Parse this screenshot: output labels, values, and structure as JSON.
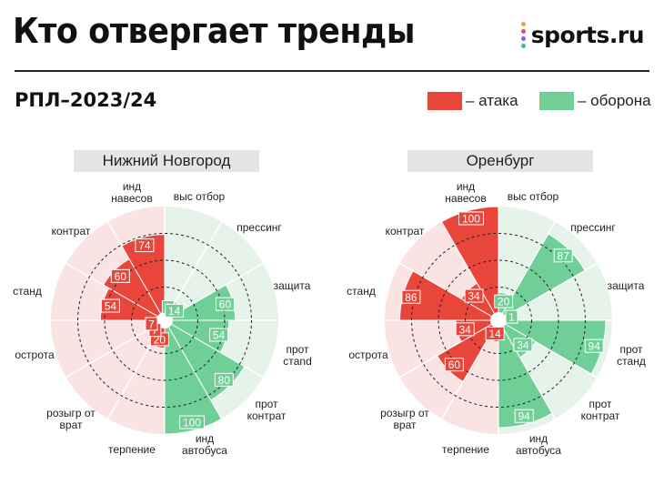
{
  "header": {
    "title": "Кто отвергает тренды",
    "logo_text": "sports.ru",
    "subtitle": "РПЛ–2023/24"
  },
  "legend": {
    "attack_label": "– атака",
    "defense_label": "– оборона"
  },
  "colors": {
    "attack": "#e8463a",
    "defense": "#6fcf97",
    "attack_bg": "#f9e4e3",
    "defense_bg": "#e6f3ea"
  },
  "chart_data": [
    {
      "type": "polar-bar",
      "team": "Нижний Новгород",
      "scale_max": 100,
      "categories": [
        {
          "label": "выс отбор",
          "value": 1,
          "group": "defense"
        },
        {
          "label": "прессинг",
          "value": 14,
          "group": "defense"
        },
        {
          "label": "защита",
          "value": 60,
          "group": "defense"
        },
        {
          "label": "прот стand",
          "value": 54,
          "group": "defense"
        },
        {
          "label": "прот контрат",
          "value": 80,
          "group": "defense"
        },
        {
          "label": "инд автобуса",
          "value": 100,
          "group": "defense"
        },
        {
          "label": "терпение",
          "value": 20,
          "group": "attack"
        },
        {
          "label": "розыгр от врат",
          "value": 7,
          "group": "attack"
        },
        {
          "label": "острота",
          "value": 7,
          "group": "attack"
        },
        {
          "label": "станд",
          "value": 54,
          "group": "attack"
        },
        {
          "label": "контрат",
          "value": 60,
          "group": "attack"
        },
        {
          "label": "инд навесов",
          "value": 74,
          "group": "attack"
        }
      ]
    },
    {
      "type": "polar-bar",
      "team": "Оренбург",
      "scale_max": 100,
      "categories": [
        {
          "label": "выс отбор",
          "value": 20,
          "group": "defense"
        },
        {
          "label": "прессинг",
          "value": 87,
          "group": "defense"
        },
        {
          "label": "защита",
          "value": 1,
          "group": "defense"
        },
        {
          "label": "прот станд",
          "value": 94,
          "group": "defense"
        },
        {
          "label": "прот контрат",
          "value": 34,
          "group": "defense"
        },
        {
          "label": "инд автобуса",
          "value": 94,
          "group": "defense"
        },
        {
          "label": "терпение",
          "value": 14,
          "group": "attack"
        },
        {
          "label": "розыгр от врат",
          "value": 60,
          "group": "attack"
        },
        {
          "label": "острота",
          "value": 34,
          "group": "attack"
        },
        {
          "label": "станд",
          "value": 86,
          "group": "attack"
        },
        {
          "label": "контрат",
          "value": 34,
          "group": "attack"
        },
        {
          "label": "инд навесов",
          "value": 100,
          "group": "attack"
        }
      ]
    }
  ]
}
